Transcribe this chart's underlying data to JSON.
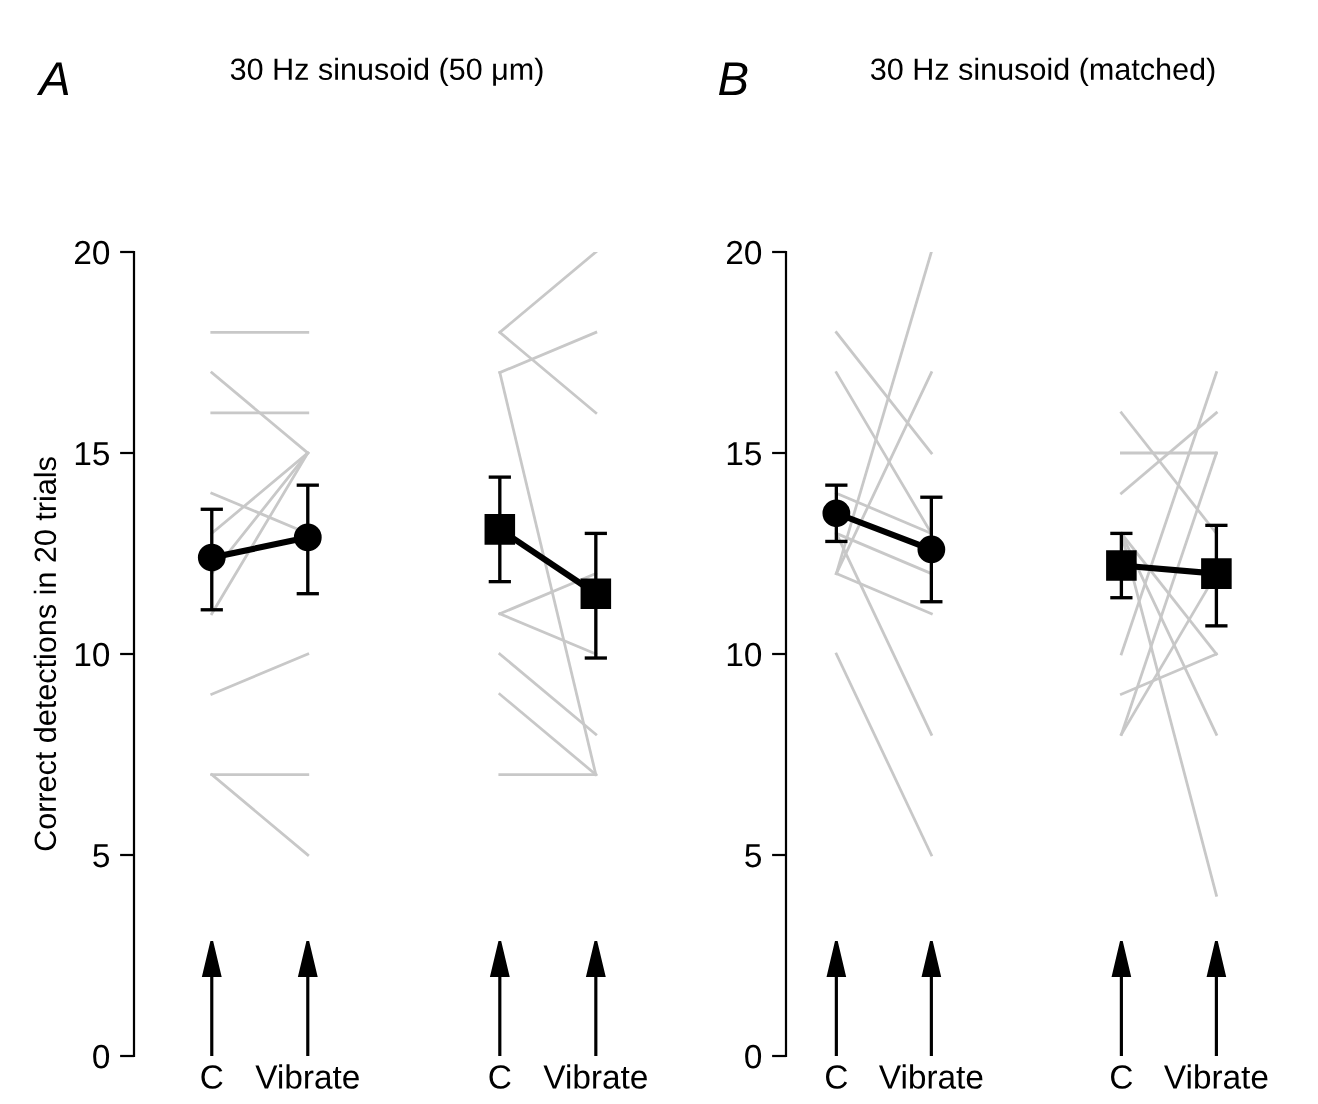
{
  "chart_data": [
    {
      "type": "line",
      "title": "30 Hz sinusoid (50 μm)",
      "ylabel": "Correct detections in 20 trials",
      "annotations": [
        "A"
      ],
      "categories": [
        "C",
        "Vibrate",
        null,
        "C",
        "Vibrate"
      ],
      "ylim": [
        0,
        20
      ],
      "yticks": [
        0,
        5,
        10,
        15,
        20
      ],
      "series": [
        {
          "color": "#c8c8c8",
          "values": [
            18,
            18,
            null,
            null,
            null
          ]
        },
        {
          "color": "#c8c8c8",
          "values": [
            17,
            15,
            null,
            null,
            null
          ]
        },
        {
          "color": "#c8c8c8",
          "values": [
            16,
            16,
            null,
            null,
            null
          ]
        },
        {
          "color": "#c8c8c8",
          "values": [
            14,
            13,
            null,
            null,
            null
          ]
        },
        {
          "color": "#c8c8c8",
          "values": [
            13,
            15,
            null,
            null,
            null
          ]
        },
        {
          "color": "#c8c8c8",
          "values": [
            12,
            15,
            null,
            null,
            null
          ]
        },
        {
          "color": "#c8c8c8",
          "values": [
            11,
            15,
            null,
            null,
            null
          ]
        },
        {
          "color": "#c8c8c8",
          "values": [
            9,
            10,
            null,
            null,
            null
          ]
        },
        {
          "color": "#c8c8c8",
          "values": [
            7,
            7,
            null,
            null,
            null
          ]
        },
        {
          "color": "#c8c8c8",
          "values": [
            7,
            5,
            null,
            null,
            null
          ]
        },
        {
          "color": "#c8c8c8",
          "values": [
            null,
            null,
            null,
            18,
            20
          ]
        },
        {
          "color": "#c8c8c8",
          "values": [
            null,
            null,
            null,
            18,
            16
          ]
        },
        {
          "color": "#c8c8c8",
          "values": [
            null,
            null,
            null,
            17,
            18
          ]
        },
        {
          "color": "#c8c8c8",
          "values": [
            null,
            null,
            null,
            17,
            7
          ]
        },
        {
          "color": "#c8c8c8",
          "values": [
            null,
            null,
            null,
            11,
            12
          ]
        },
        {
          "color": "#c8c8c8",
          "values": [
            null,
            null,
            null,
            11,
            10
          ]
        },
        {
          "color": "#c8c8c8",
          "values": [
            null,
            null,
            null,
            10,
            8
          ]
        },
        {
          "color": "#c8c8c8",
          "values": [
            null,
            null,
            null,
            9,
            7
          ]
        },
        {
          "color": "#c8c8c8",
          "values": [
            null,
            null,
            null,
            7,
            7
          ]
        },
        {
          "color": "#000000",
          "marker": "circle",
          "values": [
            12.4,
            12.9,
            null,
            null,
            null
          ],
          "errors": [
            [
              11.1,
              13.6
            ],
            [
              11.5,
              14.2
            ],
            null,
            null,
            null
          ]
        },
        {
          "color": "#000000",
          "marker": "square",
          "values": [
            null,
            null,
            null,
            13.1,
            11.5
          ],
          "errors": [
            null,
            null,
            null,
            [
              11.8,
              14.4
            ],
            [
              9.9,
              13.0
            ]
          ]
        }
      ]
    },
    {
      "type": "line",
      "title": "30 Hz sinusoid (matched)",
      "annotations": [
        "B"
      ],
      "categories": [
        "C",
        "Vibrate",
        null,
        "C",
        "Vibrate"
      ],
      "ylim": [
        0,
        20
      ],
      "yticks": [
        0,
        5,
        10,
        15,
        20
      ],
      "series": [
        {
          "color": "#c8c8c8",
          "values": [
            18,
            15,
            null,
            null,
            null
          ]
        },
        {
          "color": "#c8c8c8",
          "values": [
            17,
            13,
            null,
            null,
            null
          ]
        },
        {
          "color": "#c8c8c8",
          "values": [
            14,
            13,
            null,
            null,
            null
          ]
        },
        {
          "color": "#c8c8c8",
          "values": [
            13,
            12,
            null,
            null,
            null
          ]
        },
        {
          "color": "#c8c8c8",
          "values": [
            12,
            11,
            null,
            null,
            null
          ]
        },
        {
          "color": "#c8c8c8",
          "values": [
            12,
            20,
            null,
            null,
            null
          ]
        },
        {
          "color": "#c8c8c8",
          "values": [
            12,
            17,
            null,
            null,
            null
          ]
        },
        {
          "color": "#c8c8c8",
          "values": [
            13,
            8,
            null,
            null,
            null
          ]
        },
        {
          "color": "#c8c8c8",
          "values": [
            10,
            5,
            null,
            null,
            null
          ]
        },
        {
          "color": "#c8c8c8",
          "values": [
            null,
            null,
            null,
            16,
            13
          ]
        },
        {
          "color": "#c8c8c8",
          "values": [
            null,
            null,
            null,
            15,
            15
          ]
        },
        {
          "color": "#c8c8c8",
          "values": [
            null,
            null,
            null,
            14,
            16
          ]
        },
        {
          "color": "#c8c8c8",
          "values": [
            null,
            null,
            null,
            13,
            8
          ]
        },
        {
          "color": "#c8c8c8",
          "values": [
            null,
            null,
            null,
            13,
            10
          ]
        },
        {
          "color": "#c8c8c8",
          "values": [
            null,
            null,
            null,
            13,
            4
          ]
        },
        {
          "color": "#c8c8c8",
          "values": [
            null,
            null,
            null,
            10,
            17
          ]
        },
        {
          "color": "#c8c8c8",
          "values": [
            null,
            null,
            null,
            9,
            10
          ]
        },
        {
          "color": "#c8c8c8",
          "values": [
            null,
            null,
            null,
            8,
            15
          ]
        },
        {
          "color": "#c8c8c8",
          "values": [
            null,
            null,
            null,
            8,
            12
          ]
        },
        {
          "color": "#000000",
          "marker": "circle",
          "values": [
            13.5,
            12.6,
            null,
            null,
            null
          ],
          "errors": [
            [
              12.8,
              14.2
            ],
            [
              11.3,
              13.9
            ],
            null,
            null,
            null
          ]
        },
        {
          "color": "#000000",
          "marker": "square",
          "values": [
            null,
            null,
            null,
            12.2,
            12.0
          ],
          "errors": [
            null,
            null,
            null,
            [
              11.4,
              13.0
            ],
            [
              10.7,
              13.2
            ]
          ]
        }
      ]
    }
  ]
}
